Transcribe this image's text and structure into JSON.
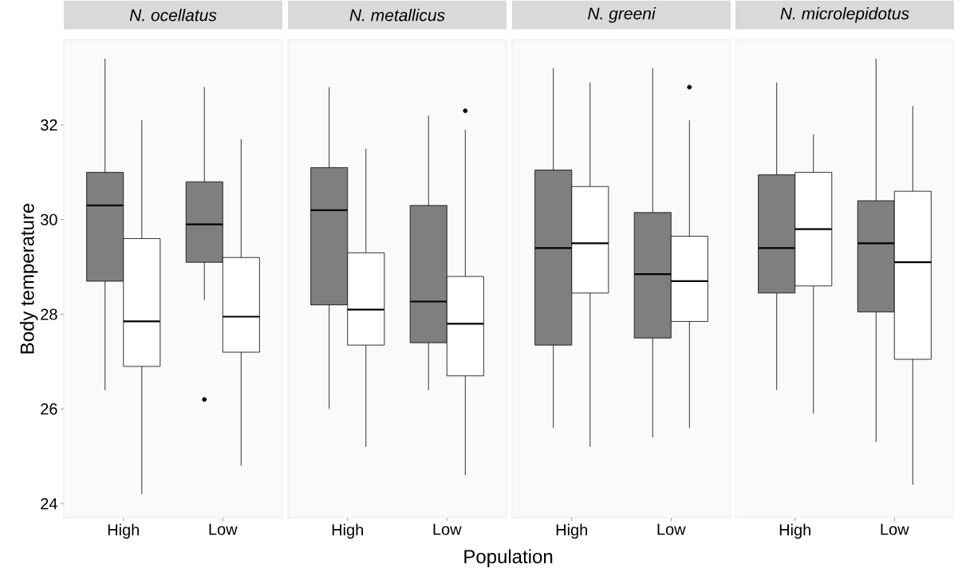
{
  "chart_data": [
    {
      "type": "box",
      "title": "N. ocellatus",
      "ylabel": "Body temperature",
      "categories": [
        "High",
        "Low"
      ],
      "ylim": [
        23.7,
        33.8
      ],
      "yticks": [
        24,
        26,
        28,
        30,
        32
      ],
      "marker": "circle",
      "series": [
        {
          "color": "#7f7f7f",
          "boxes": [
            {
              "low": 26.4,
              "q1": 28.7,
              "median": 30.3,
              "q3": 31.0,
              "high": 33.4
            },
            {
              "low": 28.3,
              "q1": 29.1,
              "median": 29.9,
              "q3": 30.8,
              "high": 32.8,
              "outliers": [
                26.2
              ]
            }
          ]
        },
        {
          "color": "#ffffff",
          "boxes": [
            {
              "low": 24.2,
              "q1": 26.9,
              "median": 27.85,
              "q3": 29.6,
              "high": 32.1
            },
            {
              "low": 24.8,
              "q1": 27.2,
              "median": 27.95,
              "q3": 29.2,
              "high": 31.7
            }
          ]
        }
      ]
    },
    {
      "type": "box",
      "title": "N. metallicus",
      "xlabel": "Population",
      "categories": [
        "High",
        "Low"
      ],
      "ylim": [
        23.7,
        33.8
      ],
      "yticks": [
        24,
        26,
        28,
        30,
        32
      ],
      "marker": "circle",
      "tick_labels": "x",
      "series": [
        {
          "color": "#7f7f7f",
          "boxes": [
            {
              "low": 26.0,
              "q1": 28.2,
              "median": 30.2,
              "q3": 31.1,
              "high": 32.8
            },
            {
              "low": 26.4,
              "q1": 27.4,
              "median": 28.27,
              "q3": 30.3,
              "high": 32.2
            }
          ]
        },
        {
          "color": "#ffffff",
          "boxes": [
            {
              "low": 25.2,
              "q1": 27.35,
              "median": 28.1,
              "q3": 29.3,
              "high": 31.5
            },
            {
              "low": 24.6,
              "q1": 26.7,
              "median": 27.8,
              "q3": 28.8,
              "high": 31.9,
              "outliers": [
                32.3
              ]
            }
          ]
        }
      ]
    },
    {
      "type": "box",
      "title": "N. greeni",
      "categories": [
        "High",
        "Low"
      ],
      "ylim": [
        23.7,
        33.8
      ],
      "yticks": [
        24,
        26,
        28,
        30,
        32
      ],
      "marker": "circle",
      "tick_labels": "x",
      "series": [
        {
          "color": "#7f7f7f",
          "boxes": [
            {
              "low": 25.6,
              "q1": 27.35,
              "median": 29.4,
              "q3": 31.05,
              "high": 33.2
            },
            {
              "low": 25.4,
              "q1": 27.5,
              "median": 28.85,
              "q3": 30.15,
              "high": 33.2
            }
          ]
        },
        {
          "color": "#ffffff",
          "boxes": [
            {
              "low": 25.2,
              "q1": 28.45,
              "median": 29.5,
              "q3": 30.7,
              "high": 32.9
            },
            {
              "low": 25.6,
              "q1": 27.85,
              "median": 28.7,
              "q3": 29.65,
              "high": 32.1,
              "outliers": [
                32.8
              ]
            }
          ]
        }
      ]
    },
    {
      "type": "box",
      "title": "N. microlepidotus",
      "categories": [
        "High",
        "Low"
      ],
      "ylim": [
        23.7,
        33.8
      ],
      "yticks": [
        24,
        26,
        28,
        30,
        32
      ],
      "marker": "circle",
      "tick_labels": "x",
      "series": [
        {
          "color": "#7f7f7f",
          "boxes": [
            {
              "low": 26.4,
              "q1": 28.45,
              "median": 29.4,
              "q3": 30.95,
              "high": 32.9
            },
            {
              "low": 25.3,
              "q1": 28.05,
              "median": 29.5,
              "q3": 30.4,
              "high": 33.4
            }
          ]
        },
        {
          "color": "#ffffff",
          "boxes": [
            {
              "low": 25.9,
              "q1": 28.6,
              "median": 29.8,
              "q3": 31.0,
              "high": 31.8
            },
            {
              "low": 24.4,
              "q1": 27.05,
              "median": 29.1,
              "q3": 30.6,
              "high": 32.4
            }
          ]
        }
      ]
    }
  ]
}
